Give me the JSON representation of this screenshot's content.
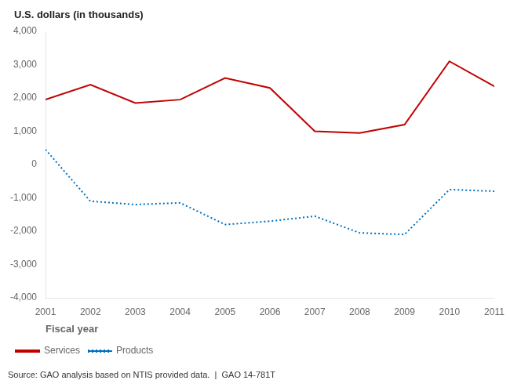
{
  "chart_data": {
    "type": "line",
    "xlabel": "Fiscal year",
    "ylabel": "U.S. dollars (in thousands)",
    "annotations": [
      "Source: GAO analysis based on NTIS provided data.  |  GAO 14-781T"
    ],
    "x": [
      2001,
      2002,
      2003,
      2004,
      2005,
      2006,
      2007,
      2008,
      2009,
      2010,
      2011
    ],
    "series": [
      {
        "name": "Services",
        "color": "#c00000",
        "line_style": "solid",
        "values": [
          1950,
          2400,
          1850,
          1950,
          2600,
          2300,
          1000,
          950,
          1200,
          3100,
          2350
        ]
      },
      {
        "name": "Products",
        "color": "#0070c0",
        "line_style": "dotted",
        "values": [
          450,
          -1100,
          -1200,
          -1150,
          -1800,
          -1700,
          -1550,
          -2050,
          -2100,
          -750,
          -800
        ]
      }
    ],
    "xlim": [
      2001,
      2011
    ],
    "xticks": [
      2001,
      2002,
      2003,
      2004,
      2005,
      2006,
      2007,
      2008,
      2009,
      2010,
      2011
    ],
    "ylim": [
      -4000,
      4000
    ],
    "yticks": [
      {
        "value": -4000,
        "label": "-4,000"
      },
      {
        "value": -3000,
        "label": "-3,000"
      },
      {
        "value": -2000,
        "label": "-2,000"
      },
      {
        "value": -1000,
        "label": "-1,000"
      },
      0,
      {
        "value": 1000,
        "label": "1,000"
      },
      {
        "value": 2000,
        "label": "2,000"
      },
      {
        "value": 3000,
        "label": "3,000"
      },
      {
        "value": 4000,
        "label": "4,000"
      }
    ],
    "grid": false,
    "legend": "lower left"
  }
}
